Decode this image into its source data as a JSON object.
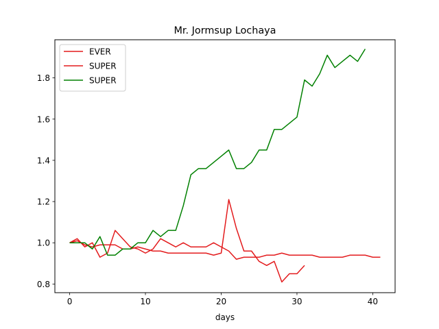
{
  "chart_data": {
    "type": "line",
    "title": "Mr. Jormsup Lochaya",
    "xlabel": "days",
    "ylabel": "",
    "xlim": [
      -1.95,
      42.95
    ],
    "ylim": [
      0.758,
      1.985
    ],
    "x_ticks": [
      0,
      10,
      20,
      30,
      40
    ],
    "y_ticks": [
      0.8,
      1.0,
      1.2,
      1.4,
      1.6,
      1.8
    ],
    "y_tick_labels": [
      "0.8",
      "1.0",
      "1.2",
      "1.4",
      "1.6",
      "1.8"
    ],
    "grid": false,
    "legend_position": "top-left",
    "series": [
      {
        "name": "EVER",
        "color": "#e31a1c",
        "x": [
          0,
          1,
          2,
          3,
          4,
          5,
          6,
          7,
          8,
          9,
          10,
          11,
          12,
          13,
          14,
          15,
          16,
          17,
          18,
          19,
          20,
          21,
          22,
          23,
          24,
          25,
          26,
          27,
          28,
          29,
          30,
          31,
          32,
          33,
          34,
          35,
          36,
          37,
          38,
          39,
          40,
          41
        ],
        "y": [
          1.0,
          1.02,
          0.98,
          1.0,
          0.93,
          0.95,
          1.06,
          1.02,
          0.98,
          0.97,
          0.95,
          0.97,
          1.02,
          1.0,
          0.98,
          1.0,
          0.98,
          0.98,
          0.98,
          1.0,
          0.98,
          0.96,
          0.92,
          0.93,
          0.93,
          0.93,
          0.94,
          0.94,
          0.95,
          0.94,
          0.94,
          0.94,
          0.94,
          0.93,
          0.93,
          0.93,
          0.93,
          0.94,
          0.94,
          0.94,
          0.93,
          0.93
        ]
      },
      {
        "name": "SUPER",
        "color": "#e31a1c",
        "x": [
          0,
          1,
          2,
          3,
          4,
          5,
          6,
          7,
          8,
          9,
          10,
          11,
          12,
          13,
          14,
          15,
          16,
          17,
          18,
          19,
          20,
          21,
          22,
          23,
          24,
          25,
          26,
          27,
          28,
          29,
          30,
          31
        ],
        "y": [
          1.0,
          1.01,
          0.99,
          0.98,
          0.99,
          0.99,
          0.99,
          0.97,
          0.97,
          0.98,
          0.97,
          0.96,
          0.96,
          0.95,
          0.95,
          0.95,
          0.95,
          0.95,
          0.95,
          0.94,
          0.95,
          1.21,
          1.07,
          0.96,
          0.96,
          0.91,
          0.89,
          0.91,
          0.81,
          0.85,
          0.85,
          0.89
        ]
      },
      {
        "name": "SUPER",
        "color": "#008000",
        "x": [
          0,
          1,
          2,
          3,
          4,
          5,
          6,
          7,
          8,
          9,
          10,
          11,
          12,
          13,
          14,
          15,
          16,
          17,
          18,
          19,
          20,
          21,
          22,
          23,
          24,
          25,
          26,
          27,
          28,
          29,
          30,
          31,
          32,
          33,
          34,
          35,
          36,
          37,
          38,
          39
        ],
        "y": [
          1.0,
          1.0,
          1.0,
          0.97,
          1.03,
          0.94,
          0.94,
          0.97,
          0.97,
          1.0,
          1.0,
          1.06,
          1.03,
          1.06,
          1.06,
          1.18,
          1.33,
          1.36,
          1.36,
          1.39,
          1.42,
          1.45,
          1.36,
          1.36,
          1.39,
          1.45,
          1.45,
          1.55,
          1.55,
          1.58,
          1.61,
          1.79,
          1.76,
          1.82,
          1.91,
          1.85,
          1.88,
          1.91,
          1.88,
          1.94
        ]
      }
    ]
  }
}
